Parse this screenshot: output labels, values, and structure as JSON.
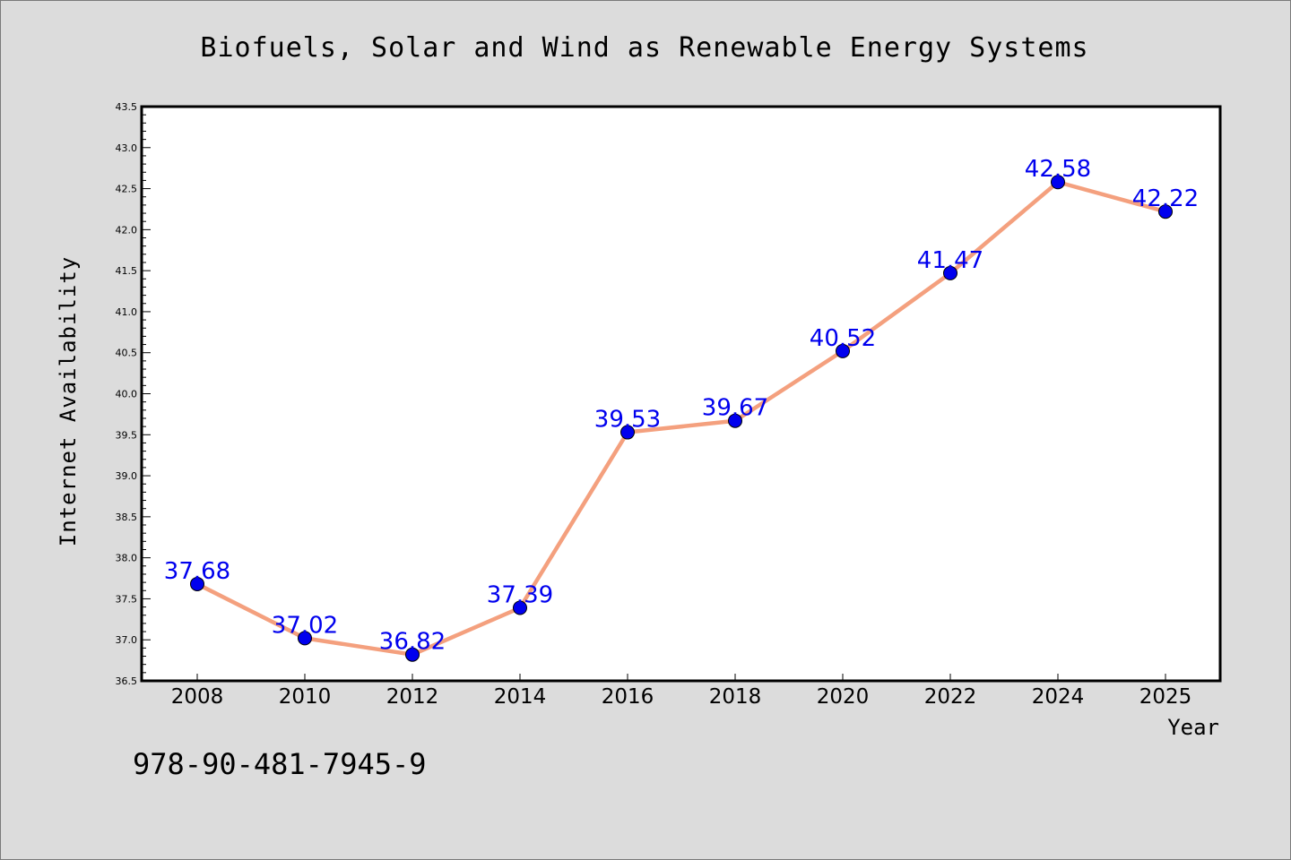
{
  "chart_data": {
    "type": "line",
    "title": "Biofuels, Solar and Wind as Renewable Energy Systems",
    "xlabel": "Year",
    "ylabel": "Internet Availability",
    "categories": [
      "2008",
      "2010",
      "2012",
      "2014",
      "2016",
      "2018",
      "2020",
      "2022",
      "2024",
      "2025"
    ],
    "series": [
      {
        "values": [
          37.68,
          37.02,
          36.82,
          37.39,
          39.53,
          39.67,
          40.52,
          41.47,
          42.58,
          42.22
        ],
        "line_color": "#f4a07e",
        "marker_color": "#0000ee"
      }
    ],
    "data_labels": [
      "37.68",
      "37.02",
      "36.82",
      "37.39",
      "39.53",
      "39.67",
      "40.52",
      "41.47",
      "42.58",
      "42.22"
    ],
    "label_color": "#0000ee",
    "ylim": [
      36.5,
      43.5
    ],
    "yticks": [
      "36.5",
      "37.0",
      "37.5",
      "38.0",
      "38.5",
      "39.0",
      "39.5",
      "40.0",
      "40.5",
      "41.0",
      "41.5",
      "42.0",
      "42.5",
      "43.0",
      "43.5"
    ],
    "grid": false,
    "legend": "none"
  },
  "annotation": "978-90-481-7945-9",
  "colors": {
    "background": "#dcdcdc",
    "plot_background": "#ffffff"
  }
}
